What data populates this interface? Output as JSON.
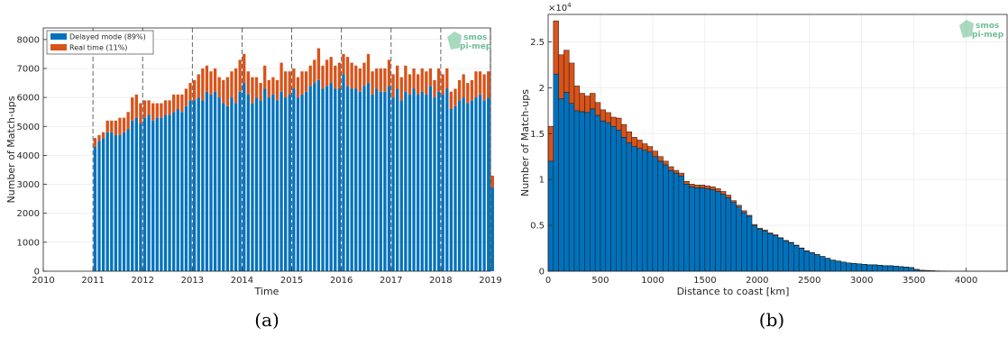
{
  "colors": {
    "delayed": "#0072BD",
    "realtime": "#D95319",
    "grid": "#e6e6e6",
    "axis": "#262626",
    "logo": "#6fbf95"
  },
  "logo": {
    "line1": "smos",
    "line2": "pi-mep"
  },
  "captions": {
    "a": "(a)",
    "b": "(b)"
  },
  "chart_data": [
    {
      "type": "bar",
      "stacked": true,
      "xlabel": "Time",
      "ylabel": "Number of Match-ups",
      "xlim": [
        2010,
        2019
      ],
      "ylim": [
        0,
        8400
      ],
      "xticks": [
        "2010",
        "2011",
        "2012",
        "2013",
        "2014",
        "2015",
        "2016",
        "2017",
        "2018",
        "2019"
      ],
      "yticks": [
        "0",
        "1000",
        "2000",
        "3000",
        "4000",
        "5000",
        "6000",
        "7000",
        "8000"
      ],
      "year_dividers": [
        2011,
        2012,
        2013,
        2014,
        2015,
        2016,
        2017,
        2018,
        2019
      ],
      "legend_position": "top-left",
      "x_start": 2011,
      "step_months": 1,
      "series": [
        {
          "name": "Delayed mode (89%)",
          "values": [
            4300,
            4500,
            4600,
            4800,
            4800,
            4700,
            4700,
            4800,
            4900,
            5200,
            5300,
            5100,
            5300,
            5400,
            5200,
            5300,
            5300,
            5400,
            5400,
            5500,
            5600,
            5500,
            5700,
            5900,
            5900,
            6000,
            5900,
            6200,
            6100,
            6200,
            6000,
            5800,
            5700,
            6000,
            5800,
            6200,
            6500,
            6100,
            5800,
            6000,
            5900,
            6300,
            6000,
            6100,
            5900,
            6200,
            6000,
            6100,
            6300,
            6000,
            6100,
            6200,
            6400,
            6500,
            6600,
            6300,
            6400,
            6500,
            6300,
            6300,
            6800,
            6400,
            6300,
            6300,
            6200,
            6400,
            6500,
            6100,
            6300,
            6200,
            6200,
            6400,
            6000,
            6300,
            5900,
            6200,
            6100,
            6300,
            6100,
            6200,
            6100,
            6400,
            6000,
            6200,
            6100,
            6300,
            5600,
            5700,
            5900,
            6000,
            5800,
            5900,
            6000,
            6100,
            5900,
            6000,
            2900
          ],
          "color": "#0072BD"
        },
        {
          "name": "Real time (11%)",
          "values": [
            300,
            200,
            200,
            400,
            400,
            500,
            600,
            500,
            600,
            800,
            800,
            700,
            600,
            500,
            600,
            500,
            500,
            500,
            500,
            600,
            500,
            600,
            600,
            600,
            700,
            800,
            1100,
            900,
            800,
            800,
            700,
            800,
            1000,
            900,
            1200,
            1100,
            1000,
            800,
            900,
            700,
            600,
            800,
            600,
            600,
            700,
            1000,
            900,
            800,
            700,
            700,
            800,
            700,
            700,
            800,
            1100,
            800,
            900,
            900,
            800,
            900,
            700,
            1000,
            900,
            800,
            800,
            800,
            1000,
            800,
            700,
            800,
            800,
            900,
            800,
            800,
            800,
            900,
            700,
            700,
            700,
            800,
            800,
            600,
            600,
            800,
            700,
            700,
            600,
            600,
            700,
            800,
            700,
            700,
            900,
            800,
            900,
            900,
            400
          ],
          "color": "#D95319"
        }
      ]
    },
    {
      "type": "bar",
      "stacked": true,
      "xlabel": "Distance to coast [km]",
      "ylabel": "Number of Match-ups",
      "xlim": [
        0,
        4400
      ],
      "ylim": [
        0,
        28000
      ],
      "xticks": [
        "0",
        "500",
        "1000",
        "1500",
        "2000",
        "2500",
        "3000",
        "3500",
        "4000"
      ],
      "yticks": [
        "0",
        "0.5",
        "1",
        "1.5",
        "2",
        "2.5"
      ],
      "y_exponent_label": "×10",
      "y_exponent": "4",
      "bin_width_km": 50,
      "x_start": 0,
      "series": [
        {
          "name": "Delayed mode",
          "values": [
            12000,
            21500,
            18800,
            19500,
            18300,
            17500,
            17400,
            17300,
            17700,
            17000,
            16400,
            16200,
            15800,
            15400,
            14600,
            14000,
            13600,
            13400,
            13200,
            13000,
            12500,
            12000,
            11600,
            11000,
            10700,
            10400,
            9500,
            9200,
            9100,
            9100,
            9000,
            8900,
            8700,
            8400,
            8000,
            7500,
            7000,
            6400,
            6000,
            5000,
            4600,
            4400,
            4100,
            3900,
            3600,
            3300,
            3100,
            2800,
            2500,
            2200,
            2000,
            1800,
            1600,
            1400,
            1200,
            1100,
            1000,
            900,
            850,
            800,
            750,
            700,
            700,
            650,
            600,
            600,
            550,
            500,
            450,
            400,
            200,
            100,
            80,
            50,
            40,
            30,
            20,
            10,
            10,
            10,
            10,
            10,
            10,
            10,
            10,
            10,
            10,
            10
          ],
          "color": "#0072BD"
        },
        {
          "name": "Real time",
          "values": [
            3800,
            5800,
            4800,
            4600,
            4400,
            2700,
            2000,
            1800,
            1700,
            1400,
            1200,
            1100,
            1000,
            1300,
            1400,
            1200,
            1000,
            900,
            700,
            600,
            600,
            500,
            400,
            400,
            300,
            300,
            300,
            300,
            300,
            300,
            300,
            300,
            300,
            300,
            300,
            200,
            200,
            200,
            100,
            100,
            100,
            100,
            80,
            80,
            60,
            60,
            50,
            50,
            40,
            40,
            30,
            30,
            20,
            20,
            20,
            20,
            10,
            10,
            10,
            10,
            10,
            10,
            10,
            10,
            10,
            10,
            10,
            10,
            10,
            10,
            10,
            10,
            10,
            10,
            0,
            0,
            0,
            0,
            0,
            0,
            0,
            0,
            0,
            0,
            0,
            0,
            0,
            0
          ],
          "color": "#D95319"
        }
      ]
    }
  ]
}
